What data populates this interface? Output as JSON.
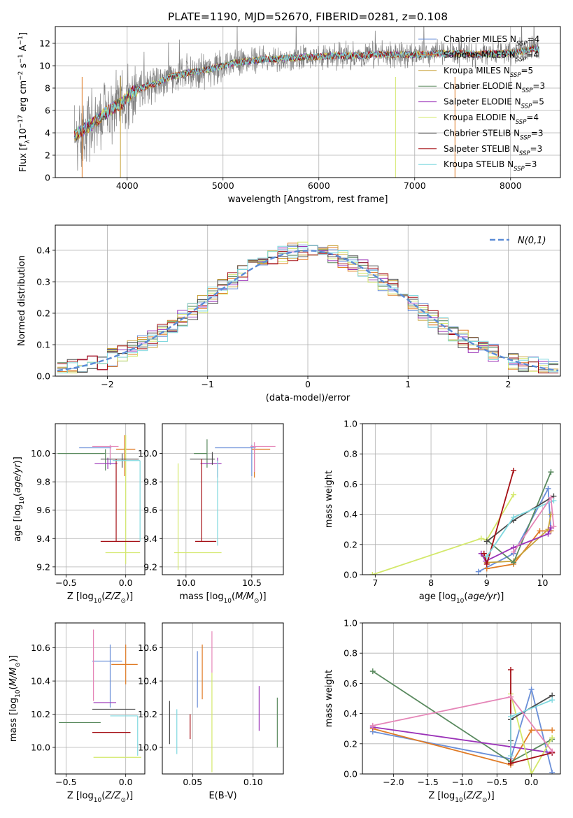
{
  "figure": {
    "title": "PLATE=1190, MJD=52670, FIBERID=0281, z=0.108"
  },
  "colors": {
    "Chabrier MILES": "#6a8fd8",
    "Salpeter MILES": "#e07b25",
    "Kroupa MILES": "#c8a23a",
    "Chabrier ELODIE": "#5a8a5f",
    "Salpeter ELODIE": "#9b33b8",
    "Kroupa ELODIE": "#d3e86a",
    "Chabrier STELIB": "#4d4d4d",
    "Salpeter STELIB": "#a50f15",
    "Kroupa STELIB": "#7fd8df",
    "extra pink": "#e586b8",
    "normal": "#5b8bd6"
  },
  "chart_data": [
    {
      "id": "spectrum",
      "type": "line",
      "xlabel": "wavelength [Angstrom, rest frame]",
      "ylabel": "Flux [f_λ 10^-17 erg cm^-2 s^-1 A^-1]",
      "xlim": [
        3250,
        8520
      ],
      "ylim": [
        0,
        13.5
      ],
      "xticks": [
        4000,
        5000,
        6000,
        7000,
        8000
      ],
      "yticks": [
        0,
        2,
        4,
        6,
        8,
        10,
        12
      ],
      "legend_position": "upper-right",
      "legend": [
        {
          "name": "Chabrier MILES",
          "nssp": "4"
        },
        {
          "name": "Salpeter MILES",
          "nssp": "4"
        },
        {
          "name": "Kroupa MILES",
          "nssp": "5"
        },
        {
          "name": "Chabrier ELODIE",
          "nssp": "3"
        },
        {
          "name": "Salpeter ELODIE",
          "nssp": "5"
        },
        {
          "name": "Kroupa ELODIE",
          "nssp": "4"
        },
        {
          "name": "Chabrier STELIB",
          "nssp": "3"
        },
        {
          "name": "Salpeter STELIB",
          "nssp": "3"
        },
        {
          "name": "Kroupa STELIB",
          "nssp": "3"
        }
      ],
      "continuum": {
        "x": [
          3450,
          3550,
          3650,
          3750,
          3850,
          3950,
          4050,
          4150,
          4250,
          4350,
          4450,
          4550,
          4650,
          4750,
          4850,
          4950,
          5050,
          5150,
          5250,
          5350,
          5450,
          5550,
          5650,
          5750,
          5850,
          5950,
          6050,
          6150,
          6250,
          6350,
          6450,
          6550,
          6650,
          6750,
          6850,
          6950,
          7050,
          7150,
          7250,
          7350,
          7450,
          7550,
          7650,
          7750,
          7850,
          7950,
          8050,
          8150,
          8250,
          8300
        ],
        "y": [
          3.8,
          4.3,
          4.9,
          5.6,
          6.2,
          6.7,
          7.6,
          8.0,
          8.3,
          8.6,
          9.0,
          9.2,
          9.4,
          9.5,
          9.7,
          9.9,
          10.1,
          10.3,
          10.4,
          10.5,
          10.6,
          10.6,
          10.7,
          10.7,
          10.8,
          10.8,
          10.8,
          10.9,
          10.9,
          10.9,
          10.9,
          11.0,
          11.0,
          11.0,
          11.0,
          11.0,
          11.0,
          11.0,
          11.1,
          11.1,
          11.1,
          11.1,
          11.0,
          11.1,
          11.1,
          11.1,
          11.2,
          11.3,
          11.6,
          11.4
        ]
      }
    },
    {
      "id": "residuals",
      "type": "line",
      "xlabel": "(data-model)/error",
      "ylabel": "Normed distribution",
      "xlim": [
        -2.52,
        2.52
      ],
      "ylim": [
        0,
        0.48
      ],
      "xticks": [
        -2,
        -1,
        0,
        1,
        2
      ],
      "yticks": [
        0.0,
        0.1,
        0.2,
        0.3,
        0.4
      ],
      "legend_position": "upper-right",
      "legend_label": "N(0,1)",
      "bin_width": 0.1
    },
    {
      "id": "age-vs-Z",
      "type": "scatter",
      "xlabel": "Z [log10(Z/Z⊙)]",
      "ylabel": "age [log10(age/yr)]",
      "xlim": [
        -0.59,
        0.16
      ],
      "ylim": [
        9.145,
        10.21
      ],
      "xticks": [
        -0.5,
        0.0
      ],
      "yticks": [
        9.2,
        9.4,
        9.6,
        9.8,
        10.0
      ],
      "points": [
        {
          "series": "Chabrier MILES",
          "Z": -0.13,
          "age": 10.04,
          "Zerr": [
            0.26,
            0.01
          ],
          "ageErr": [
            0.12,
            0.02
          ]
        },
        {
          "series": "Salpeter MILES",
          "Z": -0.01,
          "age": 10.03,
          "Zerr": [
            0.07,
            0.09
          ],
          "ageErr": [
            0.19,
            0.1
          ]
        },
        {
          "series": "Kroupa MILES",
          "Z": -0.01,
          "age": 10.03,
          "Zerr": [
            0.01,
            0.02
          ],
          "ageErr": [
            0.01,
            0.01
          ]
        },
        {
          "series": "Chabrier ELODIE",
          "Z": -0.17,
          "age": 10.0,
          "Zerr": [
            0.4,
            0.0
          ],
          "ageErr": [
            0.12,
            0.03
          ]
        },
        {
          "series": "Salpeter ELODIE",
          "Z": -0.15,
          "age": 9.93,
          "Zerr": [
            0.11,
            0.08
          ],
          "ageErr": [
            0.04,
            0.04
          ]
        },
        {
          "series": "Kroupa ELODIE",
          "Z": 0.0,
          "age": 9.3,
          "Zerr": [
            0.17,
            0.12
          ],
          "ageErr": [
            0.08,
            0.83
          ]
        },
        {
          "series": "Chabrier STELIB",
          "Z": -0.03,
          "age": 9.96,
          "Zerr": [
            0.18,
            0.14
          ],
          "ageErr": [
            0.06,
            0.04
          ]
        },
        {
          "series": "Salpeter STELIB",
          "Z": -0.08,
          "age": 9.38,
          "Zerr": [
            0.13,
            0.2
          ],
          "ageErr": [
            0.0,
            0.58
          ]
        },
        {
          "series": "Kroupa STELIB",
          "Z": 0.12,
          "age": 9.95,
          "Zerr": [
            0.23,
            0.0
          ],
          "ageErr": [
            0.57,
            0.0
          ]
        },
        {
          "series": "extra pink",
          "Z": -0.13,
          "age": 10.05,
          "Zerr": [
            0.15,
            0.07
          ],
          "ageErr": [
            0.09,
            0.01
          ]
        }
      ]
    },
    {
      "id": "age-vs-mass",
      "type": "scatter",
      "xlabel": "mass [log10(M/M⊙)]",
      "xlim": [
        9.82,
        10.74
      ],
      "ylim": [
        9.145,
        10.21
      ],
      "xticks": [
        10.0,
        10.5
      ],
      "yticks": [
        9.2,
        9.4,
        9.6,
        9.8,
        10.0
      ],
      "points": [
        {
          "series": "Chabrier MILES",
          "mass": 10.5,
          "age": 10.04,
          "massErr": [
            0.28,
            0.03
          ],
          "ageErr": [
            0.2,
            0.02
          ]
        },
        {
          "series": "Salpeter MILES",
          "mass": 10.52,
          "age": 10.03,
          "massErr": [
            0.02,
            0.12
          ],
          "ageErr": [
            0.2,
            0.0
          ]
        },
        {
          "series": "Chabrier ELODIE",
          "mass": 10.16,
          "age": 10.0,
          "massErr": [
            0.1,
            0.0
          ],
          "ageErr": [
            0.1,
            0.1
          ]
        },
        {
          "series": "Salpeter ELODIE",
          "mass": 10.24,
          "age": 9.93,
          "massErr": [
            0.13,
            0.03
          ],
          "ageErr": [
            0.1,
            0.04
          ]
        },
        {
          "series": "Kroupa ELODIE",
          "mass": 9.94,
          "age": 9.3,
          "massErr": [
            0.03,
            0.33
          ],
          "ageErr": [
            0.12,
            0.63
          ]
        },
        {
          "series": "Chabrier STELIB",
          "mass": 10.2,
          "age": 9.96,
          "massErr": [
            0.17,
            0.02
          ],
          "ageErr": [
            0.04,
            0.05
          ]
        },
        {
          "series": "Salpeter STELIB",
          "mass": 10.12,
          "age": 9.38,
          "massErr": [
            0.05,
            0.11
          ],
          "ageErr": [
            0.0,
            0.58
          ]
        },
        {
          "series": "Kroupa STELIB",
          "mass": 10.24,
          "age": 9.35,
          "massErr": [
            0.0,
            0.0
          ],
          "ageErr": [
            0.0,
            0.6
          ]
        },
        {
          "series": "extra pink",
          "mass": 10.52,
          "age": 10.05,
          "massErr": [
            0.03,
            0.16
          ],
          "ageErr": [
            0.18,
            0.03
          ]
        }
      ]
    },
    {
      "id": "massweight-vs-age",
      "type": "line",
      "xlabel": "age [log10(age/yr)]",
      "ylabel": "mass weight",
      "xlim": [
        6.77,
        10.32
      ],
      "ylim": [
        0,
        1
      ],
      "xticks": [
        7,
        8,
        9,
        10
      ],
      "yticks": [
        0.0,
        0.2,
        0.4,
        0.6,
        0.8,
        1.0
      ],
      "series": [
        {
          "name": "Chabrier MILES",
          "age": [
            8.85,
            9.48,
            10.1,
            10.15
          ],
          "w": [
            0.02,
            0.14,
            0.57,
            0.29
          ]
        },
        {
          "name": "Salpeter MILES",
          "age": [
            9.0,
            9.48,
            9.95,
            10.15
          ],
          "w": [
            0.04,
            0.07,
            0.29,
            0.29
          ]
        },
        {
          "name": "Kroupa MILES",
          "age": [
            8.95,
            9.0,
            9.48,
            10.1,
            10.15
          ],
          "w": [
            0.12,
            0.08,
            0.09,
            0.3,
            0.4
          ]
        },
        {
          "name": "Chabrier ELODIE",
          "age": [
            9.0,
            9.48,
            10.15
          ],
          "w": [
            0.23,
            0.08,
            0.68
          ]
        },
        {
          "name": "Salpeter ELODIE",
          "age": [
            8.9,
            8.98,
            9.48,
            10.1,
            10.15
          ],
          "w": [
            0.14,
            0.09,
            0.18,
            0.27,
            0.31
          ]
        },
        {
          "name": "Kroupa ELODIE",
          "age": [
            6.95,
            8.9,
            9.0,
            9.48
          ],
          "w": [
            0.0,
            0.24,
            0.23,
            0.53
          ]
        },
        {
          "name": "Chabrier STELIB",
          "age": [
            9.0,
            9.48,
            10.2
          ],
          "w": [
            0.22,
            0.36,
            0.52
          ]
        },
        {
          "name": "Salpeter STELIB",
          "age": [
            8.95,
            9.0,
            9.48
          ],
          "w": [
            0.14,
            0.07,
            0.69
          ]
        },
        {
          "name": "Kroupa STELIB",
          "age": [
            9.0,
            9.48,
            10.2
          ],
          "w": [
            0.12,
            0.38,
            0.49
          ]
        },
        {
          "name": "extra pink",
          "age": [
            9.48,
            10.15,
            10.2
          ],
          "w": [
            0.15,
            0.51,
            0.32
          ]
        }
      ]
    },
    {
      "id": "mass-vs-Z",
      "type": "scatter",
      "xlabel": "Z [log10(Z/Z⊙)]",
      "ylabel": "mass [log10(M/M⊙)]",
      "xlim": [
        -0.59,
        0.16
      ],
      "ylim": [
        9.84,
        10.75
      ],
      "xticks": [
        -0.5,
        0.0
      ],
      "yticks": [
        10.0,
        10.2,
        10.4,
        10.6
      ],
      "points": [
        {
          "series": "Chabrier MILES",
          "Z": -0.13,
          "mass": 10.52,
          "Zerr": [
            0.15,
            0.1
          ],
          "massErr": [
            0.28,
            0.1
          ]
        },
        {
          "series": "Salpeter MILES",
          "Z": 0.0,
          "mass": 10.5,
          "Zerr": [
            0.12,
            0.1
          ],
          "massErr": [
            0.12,
            0.12
          ]
        },
        {
          "series": "Chabrier ELODIE",
          "Z": -0.21,
          "mass": 10.15,
          "Zerr": [
            0.35,
            0.0
          ],
          "massErr": [
            0.0,
            0.0
          ]
        },
        {
          "series": "Salpeter ELODIE",
          "Z": -0.15,
          "mass": 10.27,
          "Zerr": [
            0.12,
            0.07
          ],
          "massErr": [
            0.0,
            0.0
          ]
        },
        {
          "series": "Kroupa ELODIE",
          "Z": 0.0,
          "mass": 9.94,
          "Zerr": [
            0.27,
            0.13
          ],
          "massErr": [
            0.0,
            0.0
          ]
        },
        {
          "series": "Chabrier STELIB",
          "Z": -0.08,
          "mass": 10.23,
          "Zerr": [
            0.2,
            0.16
          ],
          "massErr": [
            0.0,
            0.0
          ]
        },
        {
          "series": "Salpeter STELIB",
          "Z": -0.08,
          "mass": 10.09,
          "Zerr": [
            0.2,
            0.12
          ],
          "massErr": [
            0.0,
            0.0
          ]
        },
        {
          "series": "Kroupa STELIB",
          "Z": 0.1,
          "mass": 10.19,
          "Zerr": [
            0.23,
            0.0
          ],
          "massErr": [
            0.24,
            0.0
          ]
        },
        {
          "series": "extra pink",
          "Z": -0.27,
          "mass": 10.55,
          "Zerr": [
            0.0,
            0.0
          ],
          "massErr": [
            0.27,
            0.16
          ]
        }
      ]
    },
    {
      "id": "mass-vs-EBV",
      "type": "scatter",
      "xlabel": "E(B-V)",
      "xlim": [
        0.025,
        0.125
      ],
      "ylim": [
        9.84,
        10.75
      ],
      "xticks": [
        0.05,
        0.1
      ],
      "yticks": [
        10.0,
        10.2,
        10.4,
        10.6
      ],
      "points": [
        {
          "series": "Chabrier STELIB",
          "ebv": 0.031,
          "mass": 10.15,
          "massErr": [
            0.13,
            0.13
          ]
        },
        {
          "series": "Kroupa STELIB",
          "ebv": 0.037,
          "mass": 10.1,
          "massErr": [
            0.14,
            0.13
          ]
        },
        {
          "series": "Salpeter STELIB",
          "ebv": 0.048,
          "mass": 10.1,
          "massErr": [
            0.05,
            0.1
          ]
        },
        {
          "series": "Chabrier MILES",
          "ebv": 0.054,
          "mass": 10.44,
          "massErr": [
            0.2,
            0.14
          ]
        },
        {
          "series": "Salpeter MILES",
          "ebv": 0.058,
          "mass": 10.44,
          "massErr": [
            0.15,
            0.18
          ]
        },
        {
          "series": "Kroupa ELODIE",
          "ebv": 0.066,
          "mass": 10.15,
          "massErr": [
            0.3,
            0.3
          ]
        },
        {
          "series": "extra pink",
          "ebv": 0.066,
          "mass": 10.55,
          "massErr": [
            0.1,
            0.15
          ]
        },
        {
          "series": "Salpeter ELODIE",
          "ebv": 0.105,
          "mass": 10.23,
          "massErr": [
            0.13,
            0.14
          ]
        },
        {
          "series": "Chabrier ELODIE",
          "ebv": 0.12,
          "mass": 10.15,
          "massErr": [
            0.15,
            0.15
          ]
        }
      ]
    },
    {
      "id": "massweight-vs-Z",
      "type": "line",
      "xlabel": "Z [log10(Z/Z⊙)]",
      "ylabel": "mass weight",
      "xlim": [
        -2.45,
        0.42
      ],
      "ylim": [
        0,
        1
      ],
      "xticks": [
        -2.0,
        -1.5,
        -1.0,
        -0.5,
        0.0
      ],
      "xtick_labels": [
        "−2.0",
        "−1.5",
        "−1.0",
        "−0.5",
        "0.0"
      ],
      "yticks": [
        0.0,
        0.2,
        0.4,
        0.6,
        0.8,
        1.0
      ],
      "series": [
        {
          "name": "Chabrier MILES",
          "Z": [
            -2.3,
            -0.3,
            0.0,
            0.3
          ],
          "w": [
            0.28,
            0.1,
            0.56,
            0.01
          ]
        },
        {
          "name": "Salpeter MILES",
          "Z": [
            -2.3,
            -0.3,
            0.0,
            0.3
          ],
          "w": [
            0.3,
            0.06,
            0.29,
            0.29
          ]
        },
        {
          "name": "Chabrier ELODIE",
          "Z": [
            -2.3,
            -0.3,
            0.3
          ],
          "w": [
            0.68,
            0.08,
            0.23
          ]
        },
        {
          "name": "Salpeter ELODIE",
          "Z": [
            -2.3,
            -0.3,
            0.3
          ],
          "w": [
            0.31,
            0.18,
            0.14
          ]
        },
        {
          "name": "Kroupa ELODIE",
          "Z": [
            -0.3,
            0.0,
            0.3
          ],
          "w": [
            0.53,
            0.0,
            0.24
          ]
        },
        {
          "name": "Chabrier STELIB",
          "Z": [
            -0.3,
            -0.3,
            0.3
          ],
          "w": [
            0.22,
            0.36,
            0.52
          ]
        },
        {
          "name": "Salpeter STELIB",
          "Z": [
            -0.3,
            -0.3,
            0.3
          ],
          "w": [
            0.69,
            0.07,
            0.14
          ]
        },
        {
          "name": "Kroupa STELIB",
          "Z": [
            -0.3,
            -0.3,
            0.3
          ],
          "w": [
            0.12,
            0.38,
            0.49
          ]
        },
        {
          "name": "extra pink",
          "Z": [
            -2.3,
            -0.3,
            0.3
          ],
          "w": [
            0.32,
            0.51,
            0.15
          ]
        }
      ]
    }
  ]
}
